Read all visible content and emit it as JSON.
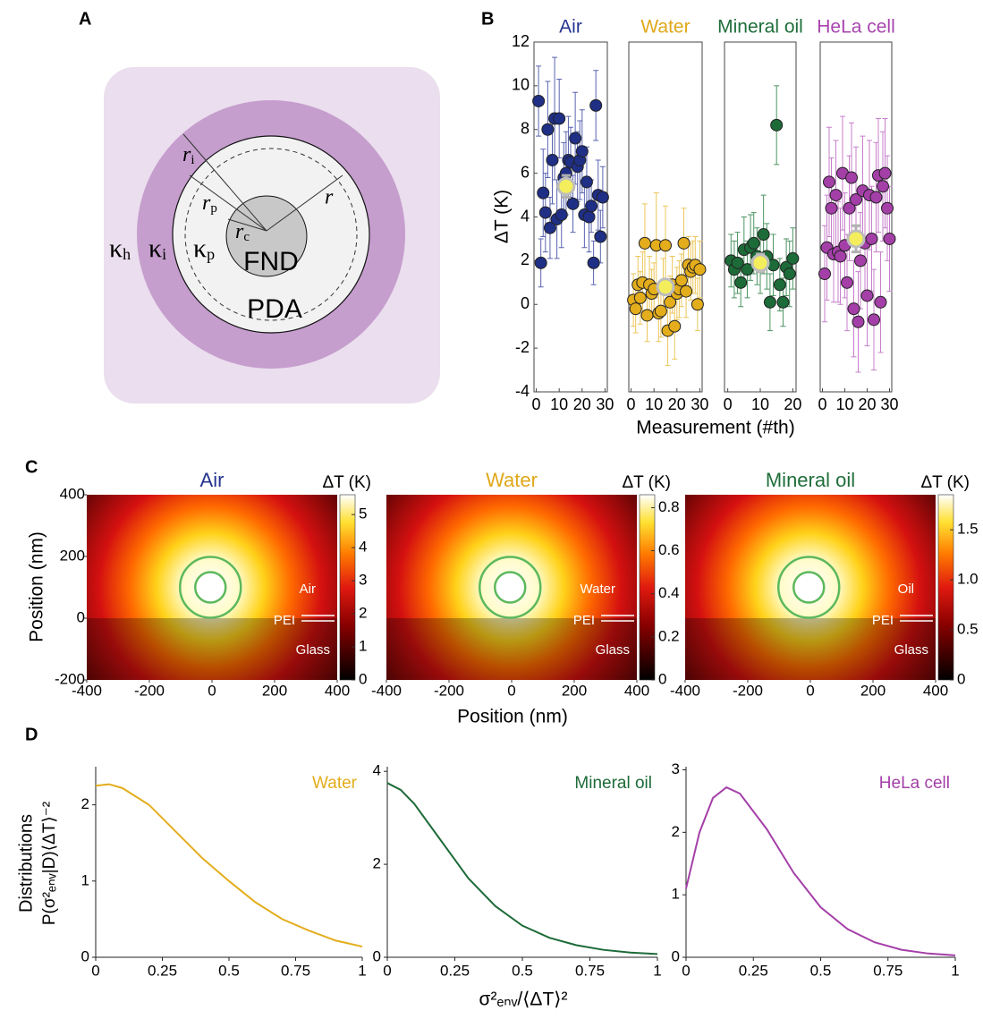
{
  "panel_labels": {
    "a": "A",
    "b": "B",
    "c": "C",
    "d": "D"
  },
  "diagram": {
    "core": "FND",
    "shell": "PDA",
    "kappa_h": {
      "symbol": "κ",
      "sub": "h"
    },
    "kappa_i": {
      "symbol": "κ",
      "sub": "i"
    },
    "kappa_p": {
      "symbol": "κ",
      "sub": "p"
    },
    "r_i": {
      "symbol": "r",
      "sub": "i"
    },
    "r_p": {
      "symbol": "r",
      "sub": "p"
    },
    "r_c": {
      "symbol": "r",
      "sub": "c"
    },
    "r": "r"
  },
  "chart_data": [
    {
      "type": "scatter",
      "title": "Air",
      "color": "#1f2f86",
      "title_color": "#25348f",
      "error_color": "#5a64b0",
      "y_label": "ΔT (K)",
      "x_label": "Measurement (#th)",
      "x": [
        1,
        2,
        3,
        4,
        5,
        6,
        7,
        8,
        9,
        10,
        11,
        12,
        13,
        14,
        15,
        16,
        17,
        18,
        19,
        20,
        21,
        22,
        23,
        24,
        25,
        26,
        27,
        28,
        29
      ],
      "values": [
        9.3,
        1.9,
        5.1,
        4.2,
        8.0,
        3.5,
        6.6,
        8.5,
        3.9,
        8.5,
        4.1,
        5.8,
        6.0,
        6.6,
        6.5,
        4.6,
        7.6,
        6.3,
        6.6,
        7.0,
        4.1,
        5.6,
        4.0,
        4.5,
        1.9,
        9.1,
        5.0,
        3.1,
        4.9
      ],
      "errors": [
        1.6,
        1.1,
        2.0,
        1.8,
        2.2,
        1.4,
        2.0,
        2.8,
        1.8,
        1.8,
        1.5,
        1.6,
        1.9,
        2.0,
        1.6,
        1.3,
        2.1,
        1.6,
        1.8,
        1.9,
        1.5,
        1.6,
        1.6,
        1.2,
        1.0,
        1.6,
        1.6,
        1.2,
        1.4
      ],
      "mean": {
        "x": 13,
        "value": 5.4,
        "error": 0.5
      },
      "xlim": [
        -1,
        31
      ],
      "xticks": [
        0,
        10,
        20,
        30
      ],
      "ylim": [
        -4,
        12
      ],
      "yticks": [
        -4,
        -2,
        0,
        2,
        4,
        6,
        8,
        10,
        12
      ]
    },
    {
      "type": "scatter",
      "title": "Water",
      "color": "#e3ad1c",
      "title_color": "#e0a81a",
      "error_color": "#ecc65a",
      "x": [
        1,
        2,
        3,
        4,
        5,
        6,
        7,
        8,
        9,
        10,
        11,
        12,
        13,
        14,
        15,
        16,
        17,
        18,
        19,
        20,
        21,
        22,
        23,
        24,
        25,
        26,
        27,
        28,
        29,
        30
      ],
      "values": [
        0.2,
        -0.2,
        0.9,
        0.3,
        1.0,
        2.8,
        -0.5,
        0.9,
        0.5,
        0.7,
        2.7,
        -0.4,
        -0.3,
        0.8,
        2.7,
        -1.2,
        0.1,
        0.9,
        -1.0,
        0.5,
        0.7,
        1.1,
        2.8,
        0.6,
        1.8,
        1.5,
        1.7,
        1.8,
        0.0,
        1.6
      ],
      "errors": [
        1.2,
        1.1,
        1.3,
        1.2,
        1.4,
        1.8,
        1.2,
        1.3,
        1.1,
        1.2,
        2.4,
        1.3,
        1.2,
        1.3,
        1.8,
        1.6,
        1.2,
        1.3,
        1.5,
        1.2,
        1.3,
        1.2,
        1.6,
        1.2,
        1.3,
        1.3,
        1.2,
        1.3,
        1.2,
        1.3
      ],
      "mean": {
        "x": 15,
        "value": 0.8,
        "error": 0.3
      },
      "xlim": [
        -1,
        31
      ],
      "xticks": [
        0,
        10,
        20,
        30
      ],
      "ylim": [
        -4,
        12
      ]
    },
    {
      "type": "scatter",
      "title": "Mineral oil",
      "color": "#1d6b38",
      "title_color": "#1f6e3a",
      "error_color": "#4c9562",
      "x": [
        1,
        2,
        3,
        4,
        5,
        6,
        7,
        8,
        9,
        10,
        11,
        12,
        13,
        14,
        15,
        16,
        17,
        18,
        19,
        20
      ],
      "values": [
        2.0,
        1.6,
        1.9,
        1.0,
        2.5,
        1.6,
        2.6,
        2.8,
        2.2,
        1.9,
        3.2,
        2.2,
        0.1,
        1.8,
        8.2,
        0.9,
        0.1,
        1.7,
        1.4,
        2.1
      ],
      "errors": [
        1.2,
        1.3,
        1.4,
        1.1,
        1.5,
        1.3,
        1.5,
        1.4,
        1.3,
        1.4,
        1.8,
        1.5,
        1.3,
        1.4,
        1.8,
        1.2,
        1.1,
        1.3,
        1.5,
        1.4
      ],
      "mean": {
        "x": 10,
        "value": 1.9,
        "error": 0.4
      },
      "xlim": [
        -1,
        21
      ],
      "xticks": [
        0,
        10,
        20
      ],
      "ylim": [
        -4,
        12
      ]
    },
    {
      "type": "scatter",
      "title": "HeLa cell",
      "color": "#a43fa8",
      "title_color": "#a845ad",
      "error_color": "#c77fcb",
      "x": [
        1,
        2,
        3,
        4,
        5,
        6,
        7,
        8,
        9,
        10,
        11,
        12,
        13,
        14,
        15,
        16,
        17,
        18,
        19,
        20,
        21,
        22,
        23,
        24,
        25,
        26,
        27,
        28,
        29,
        30
      ],
      "values": [
        1.4,
        2.6,
        5.6,
        4.4,
        2.3,
        5.0,
        2.4,
        2.2,
        6.0,
        2.7,
        1.0,
        4.4,
        5.8,
        -0.2,
        4.8,
        -0.8,
        2.0,
        5.2,
        2.8,
        0.4,
        5.0,
        3.0,
        -0.7,
        4.9,
        5.9,
        0.1,
        5.4,
        6.0,
        4.4,
        3.0
      ],
      "errors": [
        2.2,
        2.4,
        2.5,
        2.3,
        2.2,
        2.5,
        2.3,
        2.2,
        2.6,
        2.4,
        2.2,
        2.4,
        2.5,
        2.2,
        2.4,
        2.3,
        2.2,
        2.5,
        2.4,
        2.3,
        2.5,
        2.4,
        2.3,
        2.5,
        2.6,
        2.3,
        2.5,
        2.5,
        2.4,
        2.4
      ],
      "mean": {
        "x": 15,
        "value": 3.0,
        "error": 0.6
      },
      "xlim": [
        -1,
        31
      ],
      "xticks": [
        0,
        10,
        20,
        30
      ],
      "ylim": [
        -4,
        12
      ]
    },
    {
      "type": "heatmap",
      "title": "Air",
      "title_color": "#25348f",
      "y_label": "Position (nm)",
      "x_label": "Position (nm)",
      "medium_label": "Air",
      "layer_label": "PEI",
      "substrate_label": "Glass",
      "colorbar_label": "ΔT (K)",
      "clim": [
        0,
        5.6
      ],
      "cticks": [
        0,
        1,
        2,
        3,
        4,
        5
      ],
      "xlim": [
        -400,
        400
      ],
      "xticks": [
        -400,
        -200,
        0,
        200,
        400
      ],
      "ylim": [
        -200,
        400
      ],
      "yticks": [
        -200,
        0,
        200,
        400
      ]
    },
    {
      "type": "heatmap",
      "title": "Water",
      "title_color": "#e0a81a",
      "medium_label": "Water",
      "layer_label": "PEI",
      "substrate_label": "Glass",
      "colorbar_label": "ΔT (K)",
      "clim": [
        0,
        0.86
      ],
      "cticks": [
        0,
        0.2,
        0.4,
        0.6,
        0.8
      ],
      "xlim": [
        -400,
        400
      ],
      "xticks": [
        -400,
        -200,
        0,
        200,
        400
      ],
      "ylim": [
        -200,
        400
      ]
    },
    {
      "type": "heatmap",
      "title": "Mineral oil",
      "title_color": "#1f6e3a",
      "medium_label": "Oil",
      "layer_label": "PEI",
      "substrate_label": "Glass",
      "colorbar_label": "ΔT (K)",
      "clim": [
        0,
        1.85
      ],
      "cticks": [
        0,
        0.5,
        {
          "value": 1,
          "label": "1.0"
        },
        1.5
      ],
      "xlim": [
        -400,
        400
      ],
      "xticks": [
        -400,
        -200,
        0,
        200,
        400
      ],
      "ylim": [
        -200,
        400
      ]
    },
    {
      "type": "line",
      "label": "Water",
      "color": "#e3ad1c",
      "y_label": [
        "Distributions",
        "P(σ²ₑₙᵥ|D)⟨ΔT⟩⁻²"
      ],
      "x_label": "σ²ₑₙᵥ/⟨ΔT⟩²",
      "x": [
        0,
        0.05,
        0.1,
        0.2,
        0.3,
        0.4,
        0.5,
        0.6,
        0.7,
        0.8,
        0.9,
        1
      ],
      "values": [
        2.25,
        2.27,
        2.22,
        2.0,
        1.65,
        1.3,
        1.0,
        0.72,
        0.5,
        0.35,
        0.22,
        0.14
      ],
      "xlim": [
        0,
        1
      ],
      "xticks": [
        0,
        0.25,
        0.5,
        0.75,
        1
      ],
      "ylim": [
        0,
        2.5
      ],
      "yticks": [
        0,
        1,
        2
      ]
    },
    {
      "type": "line",
      "label": "Mineral oil",
      "color": "#1d6b38",
      "x": [
        0,
        0.05,
        0.1,
        0.2,
        0.3,
        0.4,
        0.5,
        0.6,
        0.7,
        0.8,
        0.9,
        1
      ],
      "values": [
        3.75,
        3.6,
        3.3,
        2.5,
        1.7,
        1.1,
        0.68,
        0.42,
        0.26,
        0.16,
        0.1,
        0.07
      ],
      "xlim": [
        0,
        1
      ],
      "xticks": [
        0,
        0.25,
        0.5,
        0.75,
        1
      ],
      "ylim": [
        0,
        4.1
      ],
      "yticks": [
        0,
        2,
        4
      ]
    },
    {
      "type": "line",
      "label": "HeLa cell",
      "color": "#a43fa8",
      "x": [
        0,
        0.05,
        0.1,
        0.15,
        0.2,
        0.3,
        0.4,
        0.5,
        0.6,
        0.7,
        0.8,
        0.9,
        1
      ],
      "values": [
        1.1,
        2.0,
        2.55,
        2.72,
        2.62,
        2.05,
        1.35,
        0.8,
        0.45,
        0.24,
        0.12,
        0.06,
        0.03
      ],
      "xlim": [
        0,
        1
      ],
      "xticks": [
        0,
        0.25,
        0.5,
        0.75,
        1
      ],
      "ylim": [
        0,
        3.05
      ],
      "yticks": [
        0,
        1,
        2,
        3
      ]
    }
  ]
}
